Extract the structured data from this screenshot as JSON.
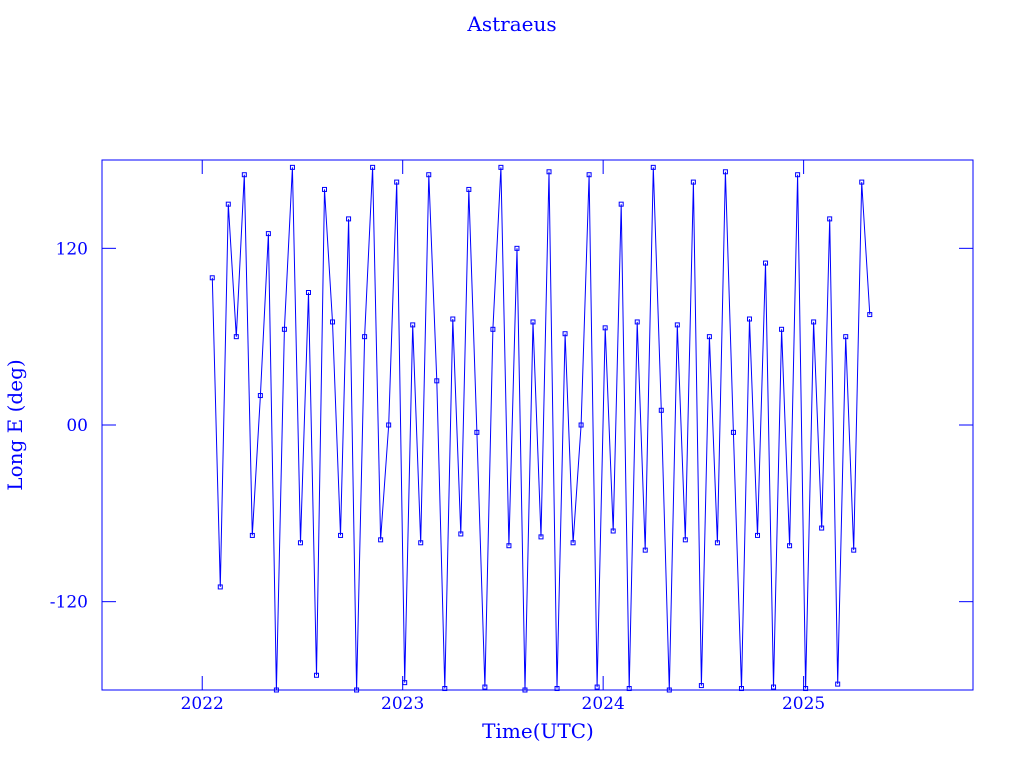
{
  "chart_data": {
    "type": "line",
    "title": "Astraeus",
    "xlabel": "Time(UTC)",
    "ylabel": "Long E (deg)",
    "xlim": [
      2021.5,
      2025.845
    ],
    "ylim": [
      -180,
      180
    ],
    "xticks": [
      2022,
      2023,
      2024,
      2025
    ],
    "yticks": [
      -120,
      {
        "value": 0,
        "label": "00"
      },
      120
    ],
    "series": [
      {
        "color": "#0000ff",
        "x": [
          2022.05,
          2022.09,
          2022.13,
          2022.17,
          2022.21,
          2022.25,
          2022.29,
          2022.33,
          2022.37,
          2022.41,
          2022.45,
          2022.49,
          2022.53,
          2022.57,
          2022.61,
          2022.65,
          2022.69,
          2022.73,
          2022.77,
          2022.81,
          2022.85,
          2022.89,
          2022.93,
          2022.97,
          2023.01,
          2023.05,
          2023.09,
          2023.13,
          2023.17,
          2023.21,
          2023.25,
          2023.29,
          2023.33,
          2023.37,
          2023.41,
          2023.45,
          2023.49,
          2023.53,
          2023.57,
          2023.61,
          2023.65,
          2023.69,
          2023.73,
          2023.77,
          2023.81,
          2023.85,
          2023.89,
          2023.93,
          2023.97,
          2024.01,
          2024.05,
          2024.09,
          2024.13,
          2024.17,
          2024.21,
          2024.25,
          2024.29,
          2024.33,
          2024.37,
          2024.41,
          2024.45,
          2024.49,
          2024.53,
          2024.57,
          2024.61,
          2024.65,
          2024.69,
          2024.73,
          2024.77,
          2024.81,
          2024.85,
          2024.89,
          2024.93,
          2024.97,
          2025.01,
          2025.05,
          2025.09,
          2025.13,
          2025.17,
          2025.21,
          2025.25,
          2025.29,
          2025.33
        ],
        "values": [
          100,
          -110,
          150,
          60,
          170,
          -75,
          20,
          130,
          -180,
          65,
          175,
          -80,
          90,
          -170,
          160,
          70,
          -75,
          140,
          -180,
          60,
          175,
          -78,
          0,
          165,
          -175,
          68,
          -80,
          170,
          30,
          -179,
          72,
          -74,
          160,
          -5,
          -178,
          65,
          175,
          -82,
          120,
          -180,
          70,
          -76,
          172,
          -179,
          62,
          -80,
          0,
          170,
          -178,
          66,
          -72,
          150,
          -179,
          70,
          -85,
          175,
          10,
          -180,
          68,
          -78,
          165,
          -177,
          60,
          -80,
          172,
          -5,
          -179,
          72,
          -75,
          110,
          -178,
          65,
          -82,
          170,
          -179,
          70,
          -70,
          140,
          -176,
          60,
          -85,
          165,
          75
        ]
      }
    ]
  }
}
